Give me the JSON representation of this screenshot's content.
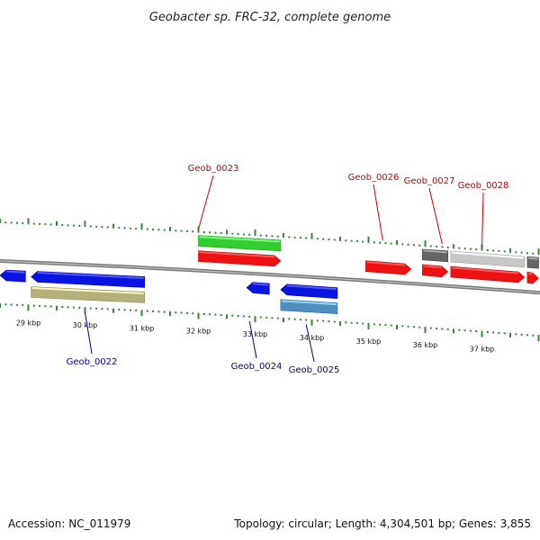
{
  "title": "Geobacter sp. FRC-32, complete genome",
  "footer": {
    "accession": "Accession: NC_011979",
    "summary": "Topology: circular; Length: 4,304,501 bp; Genes: 3,855"
  },
  "view": {
    "start_kbp": 28.5,
    "end_kbp": 38.0,
    "kbp_unit": "kbp"
  },
  "ticks": {
    "major_kbp": [
      29,
      30,
      31,
      32,
      33,
      34,
      35,
      36,
      37
    ]
  },
  "colors": {
    "backbone": "#7a7a7a",
    "tick": "#2e8b2e",
    "forward_label": "#cc0000",
    "reverse_label": "#000099"
  },
  "features": [
    {
      "id": "f1",
      "start": 28.5,
      "end": 28.95,
      "strand": "-",
      "lane": 1,
      "kind": "cds-rev",
      "color": "#0a14e0"
    },
    {
      "id": "f2",
      "start": 29.05,
      "end": 31.05,
      "strand": "-",
      "lane": 1,
      "kind": "cds-rev",
      "color": "#0a14e0"
    },
    {
      "id": "f3",
      "start": 29.05,
      "end": 31.05,
      "strand": "-",
      "lane": 2,
      "kind": "bar",
      "color": "#b5b07a"
    },
    {
      "id": "f4",
      "start": 32.0,
      "end": 33.45,
      "strand": "+",
      "lane": 2,
      "kind": "bar",
      "color": "#33cc33"
    },
    {
      "id": "f5",
      "start": 32.0,
      "end": 33.45,
      "strand": "+",
      "lane": 1,
      "kind": "cds-fwd",
      "color": "#ee1111"
    },
    {
      "id": "f6",
      "start": 32.85,
      "end": 33.25,
      "strand": "-",
      "lane": 1,
      "kind": "cds-rev",
      "color": "#0a14e0"
    },
    {
      "id": "f7",
      "start": 33.45,
      "end": 34.45,
      "strand": "-",
      "lane": 1,
      "kind": "cds-rev",
      "color": "#0a14e0"
    },
    {
      "id": "f8",
      "start": 33.45,
      "end": 34.45,
      "strand": "-",
      "lane": 2,
      "kind": "bar",
      "color": "#4f8fc0"
    },
    {
      "id": "f9",
      "start": 34.95,
      "end": 35.75,
      "strand": "+",
      "lane": 1,
      "kind": "cds-fwd",
      "color": "#ee1111"
    },
    {
      "id": "f10",
      "start": 35.95,
      "end": 36.4,
      "strand": "+",
      "lane": 1,
      "kind": "cds-fwd",
      "color": "#ee1111"
    },
    {
      "id": "f11",
      "start": 35.95,
      "end": 36.4,
      "strand": "+",
      "lane": 2,
      "kind": "bar",
      "color": "#666666"
    },
    {
      "id": "f12",
      "start": 36.45,
      "end": 37.75,
      "strand": "+",
      "lane": 1,
      "kind": "cds-fwd",
      "color": "#ee1111"
    },
    {
      "id": "f13",
      "start": 36.45,
      "end": 37.75,
      "strand": "+",
      "lane": 2,
      "kind": "bar",
      "color": "#c8c8c8"
    },
    {
      "id": "f14",
      "start": 37.8,
      "end": 38.0,
      "strand": "+",
      "lane": 1,
      "kind": "cds-fwd",
      "color": "#ee1111"
    },
    {
      "id": "f15",
      "start": 37.8,
      "end": 38.0,
      "strand": "+",
      "lane": 2,
      "kind": "bar",
      "color": "#666666"
    }
  ],
  "labels": [
    {
      "name": "Geob_0022",
      "strand": "-",
      "pos_kbp": 30.0
    },
    {
      "name": "Geob_0023",
      "strand": "+",
      "pos_kbp": 32.0
    },
    {
      "name": "Geob_0024",
      "strand": "-",
      "pos_kbp": 32.9
    },
    {
      "name": "Geob_0025",
      "strand": "-",
      "pos_kbp": 33.9
    },
    {
      "name": "Geob_0026",
      "strand": "+",
      "pos_kbp": 35.25
    },
    {
      "name": "Geob_0027",
      "strand": "+",
      "pos_kbp": 36.3
    },
    {
      "name": "Geob_0028",
      "strand": "+",
      "pos_kbp": 37.0
    }
  ]
}
